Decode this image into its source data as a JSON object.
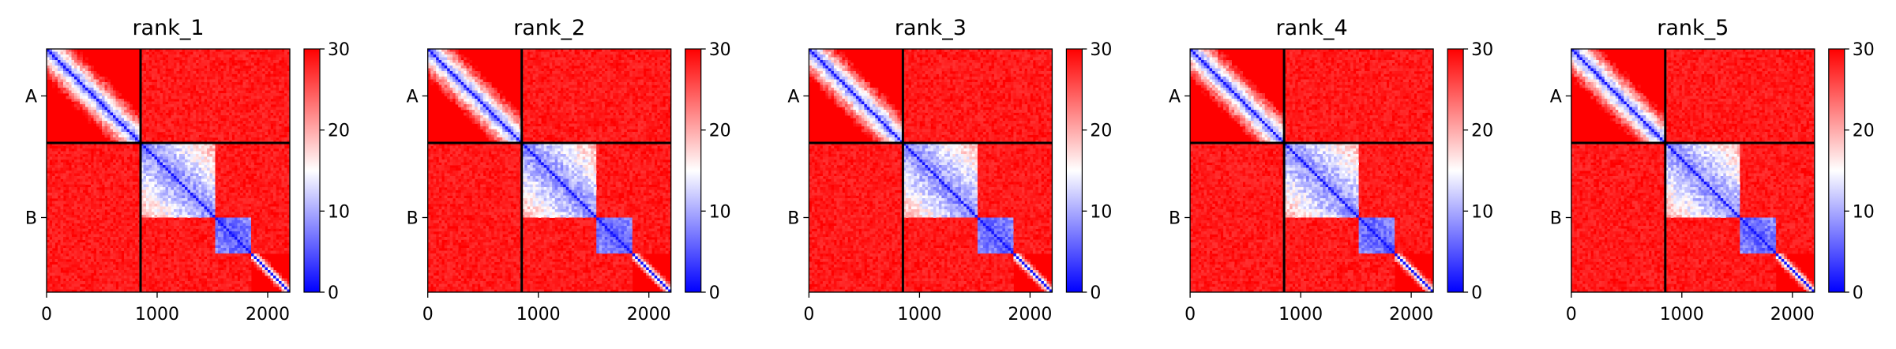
{
  "figure": {
    "panel_count": 5,
    "colormap": {
      "name": "bwr",
      "low": "#0000ff",
      "mid": "#ffffff",
      "high": "#ff0000"
    },
    "divider_color": "#000000"
  },
  "chart_data": [
    {
      "type": "heatmap",
      "title": "rank_1",
      "x_ticks": [
        0,
        1000,
        2000
      ],
      "xlim": [
        0,
        2200
      ],
      "ylim": [
        2200,
        0
      ],
      "y_tick_labels": [
        "A",
        "B"
      ],
      "chain_boundaries": [
        0,
        850,
        2200
      ],
      "domains": [
        [
          0,
          850
        ],
        [
          850,
          1520
        ],
        [
          1520,
          1850
        ],
        [
          1850,
          2200
        ]
      ],
      "colorbar": {
        "ticks": [
          0,
          10,
          20,
          30
        ],
        "vmin": 0,
        "vmax": 30
      }
    },
    {
      "type": "heatmap",
      "title": "rank_2",
      "x_ticks": [
        0,
        1000,
        2000
      ],
      "xlim": [
        0,
        2200
      ],
      "ylim": [
        2200,
        0
      ],
      "y_tick_labels": [
        "A",
        "B"
      ],
      "chain_boundaries": [
        0,
        850,
        2200
      ],
      "domains": [
        [
          0,
          850
        ],
        [
          850,
          1520
        ],
        [
          1520,
          1850
        ],
        [
          1850,
          2200
        ]
      ],
      "colorbar": {
        "ticks": [
          0,
          10,
          20,
          30
        ],
        "vmin": 0,
        "vmax": 30
      }
    },
    {
      "type": "heatmap",
      "title": "rank_3",
      "x_ticks": [
        0,
        1000,
        2000
      ],
      "xlim": [
        0,
        2200
      ],
      "ylim": [
        2200,
        0
      ],
      "y_tick_labels": [
        "A",
        "B"
      ],
      "chain_boundaries": [
        0,
        850,
        2200
      ],
      "domains": [
        [
          0,
          850
        ],
        [
          850,
          1520
        ],
        [
          1520,
          1850
        ],
        [
          1850,
          2200
        ]
      ],
      "colorbar": {
        "ticks": [
          0,
          10,
          20,
          30
        ],
        "vmin": 0,
        "vmax": 30
      }
    },
    {
      "type": "heatmap",
      "title": "rank_4",
      "x_ticks": [
        0,
        1000,
        2000
      ],
      "xlim": [
        0,
        2200
      ],
      "ylim": [
        2200,
        0
      ],
      "y_tick_labels": [
        "A",
        "B"
      ],
      "chain_boundaries": [
        0,
        850,
        2200
      ],
      "domains": [
        [
          0,
          850
        ],
        [
          850,
          1520
        ],
        [
          1520,
          1850
        ],
        [
          1850,
          2200
        ]
      ],
      "colorbar": {
        "ticks": [
          0,
          10,
          20,
          30
        ],
        "vmin": 0,
        "vmax": 30
      }
    },
    {
      "type": "heatmap",
      "title": "rank_5",
      "x_ticks": [
        0,
        1000,
        2000
      ],
      "xlim": [
        0,
        2200
      ],
      "ylim": [
        2200,
        0
      ],
      "y_tick_labels": [
        "A",
        "B"
      ],
      "chain_boundaries": [
        0,
        850,
        2200
      ],
      "domains": [
        [
          0,
          850
        ],
        [
          850,
          1520
        ],
        [
          1520,
          1850
        ],
        [
          1850,
          2200
        ]
      ],
      "colorbar": {
        "ticks": [
          0,
          10,
          20,
          30
        ],
        "vmin": 0,
        "vmax": 30
      }
    }
  ]
}
